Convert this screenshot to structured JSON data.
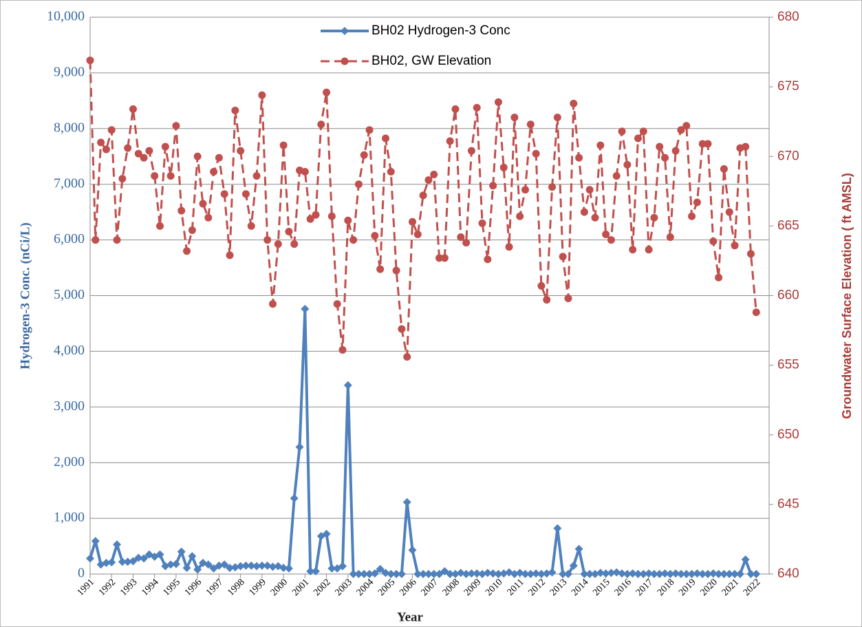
{
  "chart_data": {
    "type": "line",
    "x_label": "Year",
    "y_label": "Hydrogen-3 Conc. (nCi/L)",
    "y2_label": "Groundwater Surface Elevation ( ft AMSL)",
    "xlim": [
      1991,
      2022.6
    ],
    "xticks": [
      1991,
      1992,
      1993,
      1994,
      1995,
      1996,
      1997,
      1998,
      1999,
      2000,
      2001,
      2002,
      2003,
      2004,
      2005,
      2006,
      2007,
      2008,
      2009,
      2010,
      2011,
      2012,
      2013,
      2014,
      2015,
      2016,
      2017,
      2018,
      2019,
      2020,
      2021,
      2022
    ],
    "ylim": [
      0,
      10000
    ],
    "yticks": [
      0,
      {
        "value": 1000,
        "label": "1,000"
      },
      {
        "value": 2000,
        "label": "2,000"
      },
      {
        "value": 3000,
        "label": "3,000"
      },
      {
        "value": 4000,
        "label": "4,000"
      },
      {
        "value": 5000,
        "label": "5,000"
      },
      {
        "value": 6000,
        "label": "6,000"
      },
      {
        "value": 7000,
        "label": "7,000"
      },
      {
        "value": 8000,
        "label": "8,000"
      },
      {
        "value": 9000,
        "label": "9,000"
      },
      {
        "value": 10000,
        "label": "10,000"
      }
    ],
    "y2lim": [
      640,
      680
    ],
    "y2ticks": [
      640,
      645,
      650,
      655,
      660,
      665,
      670,
      675,
      680
    ],
    "grid": true,
    "legend": "upper center",
    "x": [
      1991,
      1991.25,
      1991.5,
      1991.75,
      1992,
      1992.25,
      1992.5,
      1992.75,
      1993,
      1993.25,
      1993.5,
      1993.75,
      1994,
      1994.25,
      1994.5,
      1994.75,
      1995,
      1995.25,
      1995.5,
      1995.75,
      1996,
      1996.25,
      1996.5,
      1996.75,
      1997,
      1997.25,
      1997.5,
      1997.75,
      1998,
      1998.25,
      1998.5,
      1998.75,
      1999,
      1999.25,
      1999.5,
      1999.75,
      2000,
      2000.25,
      2000.5,
      2000.75,
      2001,
      2001.25,
      2001.5,
      2001.75,
      2002,
      2002.25,
      2002.5,
      2002.75,
      2003,
      2003.25,
      2003.5,
      2003.75,
      2004,
      2004.25,
      2004.5,
      2004.75,
      2005,
      2005.25,
      2005.5,
      2005.75,
      2006,
      2006.25,
      2006.5,
      2006.75,
      2007,
      2007.25,
      2007.5,
      2007.75,
      2008,
      2008.25,
      2008.5,
      2008.75,
      2009,
      2009.25,
      2009.5,
      2009.75,
      2010,
      2010.25,
      2010.5,
      2010.75,
      2011,
      2011.25,
      2011.5,
      2011.75,
      2012,
      2012.25,
      2012.5,
      2012.75,
      2013,
      2013.25,
      2013.5,
      2013.75,
      2014,
      2014.25,
      2014.5,
      2014.75,
      2015,
      2015.25,
      2015.5,
      2015.75,
      2016,
      2016.25,
      2016.5,
      2016.75,
      2017,
      2017.25,
      2017.5,
      2017.75,
      2018,
      2018.25,
      2018.5,
      2018.75,
      2019,
      2019.25,
      2019.5,
      2019.75,
      2020,
      2020.25,
      2020.5,
      2020.75,
      2021,
      2021.25,
      2021.5,
      2021.75,
      2022
    ],
    "series": [
      {
        "name": "BH02 Hydrogen-3 Conc",
        "color": "#4f81bd",
        "marker": "diamond",
        "dash": false,
        "values": [
          280,
          590,
          170,
          200,
          210,
          530,
          220,
          220,
          230,
          290,
          280,
          350,
          310,
          350,
          140,
          170,
          180,
          400,
          110,
          320,
          80,
          200,
          170,
          100,
          150,
          170,
          110,
          120,
          140,
          150,
          150,
          140,
          150,
          150,
          130,
          140,
          110,
          100,
          1360,
          2280,
          4760,
          50,
          50,
          680,
          720,
          100,
          100,
          140,
          3390,
          0,
          0,
          0,
          0,
          10,
          90,
          20,
          0,
          0,
          0,
          1290,
          430,
          0,
          0,
          0,
          0,
          0,
          50,
          0,
          0,
          20,
          0,
          10,
          10,
          0,
          20,
          10,
          0,
          10,
          30,
          0,
          20,
          0,
          0,
          10,
          0,
          10,
          30,
          820,
          0,
          0,
          150,
          450,
          0,
          0,
          0,
          20,
          10,
          20,
          30,
          10,
          0,
          10,
          0,
          0,
          10,
          0,
          0,
          10,
          0,
          10,
          0,
          0,
          0,
          10,
          0,
          0,
          10,
          0,
          0,
          0,
          0,
          0,
          260,
          0,
          0
        ]
      },
      {
        "name": "BH02, GW Elevation",
        "color": "#c0504d",
        "marker": "circle",
        "dash": true,
        "axis": "y2",
        "values": [
          676.9,
          664.0,
          671.0,
          670.5,
          671.9,
          664.0,
          668.4,
          670.6,
          673.4,
          670.2,
          669.9,
          670.4,
          668.6,
          665.0,
          670.7,
          668.6,
          672.2,
          666.1,
          663.2,
          664.7,
          670.0,
          666.6,
          665.6,
          668.9,
          669.9,
          667.3,
          662.9,
          673.3,
          670.4,
          667.3,
          665.0,
          668.6,
          674.4,
          664.0,
          659.4,
          663.7,
          670.8,
          664.6,
          663.7,
          669.0,
          668.9,
          665.5,
          665.8,
          672.3,
          674.6,
          665.7,
          659.4,
          656.1,
          665.4,
          664.0,
          668.0,
          670.1,
          671.9,
          664.3,
          661.9,
          671.3,
          668.9,
          661.8,
          657.6,
          655.6,
          665.3,
          664.4,
          667.2,
          668.3,
          668.7,
          662.7,
          662.7,
          671.1,
          673.4,
          664.2,
          663.8,
          670.4,
          673.5,
          665.2,
          662.6,
          667.9,
          673.9,
          669.2,
          663.5,
          672.8,
          665.7,
          667.6,
          672.3,
          670.2,
          660.7,
          659.7,
          667.8,
          672.8,
          662.8,
          659.8,
          673.8,
          669.9,
          666.0,
          667.6,
          665.6,
          670.8,
          664.4,
          664.0,
          668.6,
          671.8,
          669.4,
          663.3,
          671.3,
          671.8,
          663.3,
          665.6,
          670.7,
          669.9,
          664.2,
          670.4,
          671.9,
          672.2,
          665.7,
          666.7,
          670.9,
          670.9,
          663.9,
          661.3,
          669.1,
          666.0,
          663.6,
          670.6,
          670.7,
          663.0,
          658.8
        ]
      }
    ]
  }
}
